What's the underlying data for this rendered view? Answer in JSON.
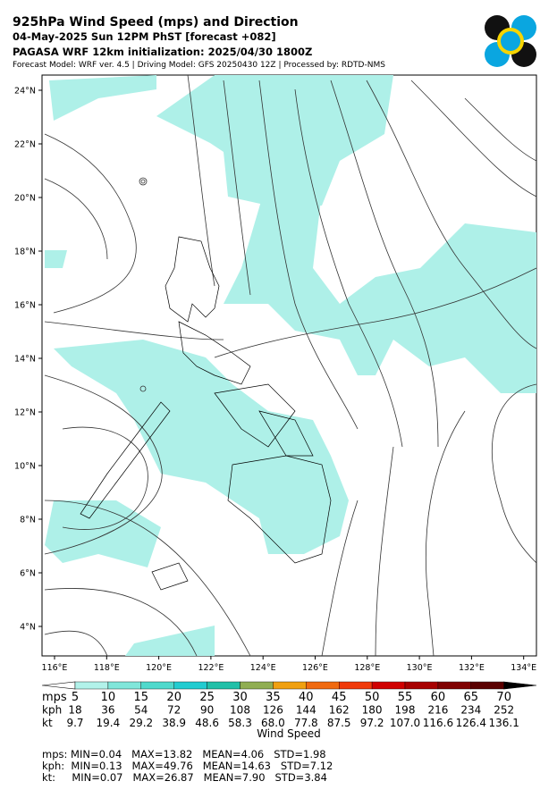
{
  "header": {
    "title": "925hPa Wind Speed (mps) and Direction",
    "line2": "04-May-2025 Sun 12PM PhST [forecast +082]",
    "line3": "PAGASA WRF 12km initialization: 2025/04/30 1800Z",
    "line4": "Forecast Model: WRF ver. 4.5 | Driving Model: GFS 20250430 12Z | Processed by: RDTD-NMS"
  },
  "map": {
    "lat_labels": [
      "24°N",
      "22°N",
      "20°N",
      "18°N",
      "16°N",
      "14°N",
      "12°N",
      "10°N",
      "8°N",
      "6°N",
      "4°N"
    ],
    "lon_labels": [
      "116°E",
      "118°E",
      "120°E",
      "122°E",
      "124°E",
      "126°E",
      "128°E",
      "130°E",
      "132°E",
      "134°E"
    ]
  },
  "colorbar": {
    "colors": [
      "#b2f2ea",
      "#80e6da",
      "#4fd9cc",
      "#22ccd0",
      "#22c0a8",
      "#90ae52",
      "#f0a010",
      "#f06a10",
      "#f03a0a",
      "#d00000",
      "#a80000",
      "#800000",
      "#5a0000"
    ],
    "under_color": "#ffffff",
    "over_color": "#000000",
    "rows": [
      {
        "unit": "mps",
        "labels": [
          "5",
          "10",
          "15",
          "20",
          "25",
          "30",
          "35",
          "40",
          "45",
          "50",
          "55",
          "60",
          "65",
          "70"
        ]
      },
      {
        "unit": "kph",
        "labels": [
          "18",
          "36",
          "54",
          "72",
          "90",
          "108",
          "126",
          "144",
          "162",
          "180",
          "198",
          "216",
          "234",
          "252"
        ]
      },
      {
        "unit": "kt",
        "labels": [
          "9.7",
          "19.4",
          "29.2",
          "38.9",
          "48.6",
          "58.3",
          "68.0",
          "77.8",
          "87.5",
          "97.2",
          "107.0",
          "116.6",
          "126.4",
          "136.1"
        ]
      }
    ],
    "label": "Wind Speed"
  },
  "stats": [
    "mps: MIN=0.04   MAX=13.82   MEAN=4.06   STD=1.98",
    "kph:  MIN=0.13   MAX=49.76   MEAN=14.63   STD=7.12",
    "kt:     MIN=0.07   MAX=26.87   MEAN=7.90   STD=3.84"
  ]
}
